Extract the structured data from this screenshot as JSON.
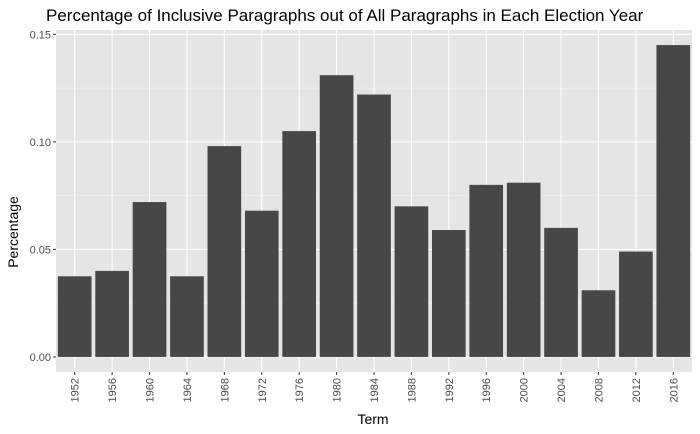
{
  "chart_data": {
    "type": "bar",
    "title": "Percentage of Inclusive Paragraphs out of All Paragraphs in Each Election Year",
    "xlabel": "Term",
    "ylabel": "Percentage",
    "categories": [
      "1952",
      "1956",
      "1960",
      "1964",
      "1968",
      "1972",
      "1976",
      "1980",
      "1984",
      "1988",
      "1992",
      "1996",
      "2000",
      "2004",
      "2008",
      "2012",
      "2016"
    ],
    "values": [
      0.0375,
      0.04,
      0.072,
      0.0375,
      0.098,
      0.068,
      0.105,
      0.131,
      0.122,
      0.07,
      0.059,
      0.08,
      0.081,
      0.06,
      0.031,
      0.049,
      0.145
    ],
    "ylim": [
      -0.007,
      0.152
    ],
    "yticks": [
      0.0,
      0.05,
      0.1,
      0.15
    ],
    "ytick_labels": [
      "0.00",
      "0.05",
      "0.10",
      "0.15"
    ],
    "grid": true,
    "legend": "none",
    "colors": {
      "bar": "#474747",
      "panel": "#e5e5e5",
      "grid_major": "#ffffff",
      "grid_minor": "#f2f2f2"
    }
  }
}
